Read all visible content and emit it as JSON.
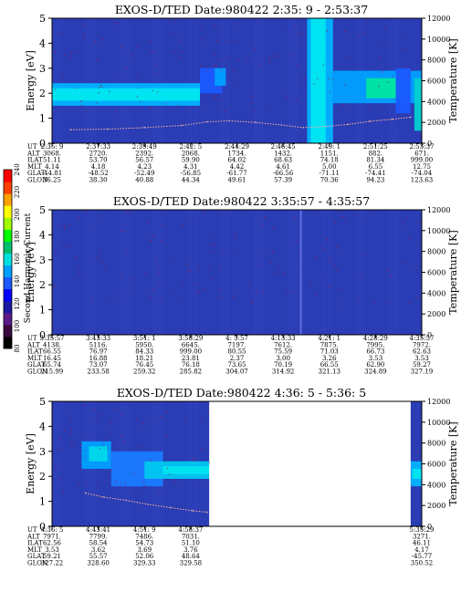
{
  "colorbar": {
    "label": "Second Harmonic Current",
    "ticks": [
      "80",
      "100",
      "120",
      "140",
      "160",
      "180",
      "200",
      "220",
      "240"
    ],
    "colors": [
      "#000000",
      "#3a0a3e",
      "#5a1a8a",
      "#1a1aa0",
      "#0000ff",
      "#1a5aff",
      "#00a0ff",
      "#00e0e0",
      "#00c070",
      "#00ff00",
      "#a0ff00",
      "#ffff00",
      "#ffa000",
      "#ff4000",
      "#ff0000"
    ]
  },
  "chart_data": [
    {
      "type": "heatmap",
      "title": "EXOS-D/TED   Date:980422  2:35: 9 - 2:53:37",
      "ylabel": "Energy [eV]",
      "ylabel_right": "Temperature [K]",
      "ylim": [
        0,
        5
      ],
      "yticks": [
        "0",
        "1",
        "2",
        "3",
        "4",
        "5"
      ],
      "yticks_right": [
        "0",
        "2000",
        "4000",
        "6000",
        "8000",
        "10000",
        "12000"
      ],
      "ylim_right": [
        0,
        12000
      ],
      "background": "#2a3db4",
      "row_labels": [
        "UT",
        "ALT",
        "ILAT",
        "MLT",
        "GLAT",
        "GLON"
      ],
      "columns": [
        [
          "2:35: 9",
          "3068.",
          "51.11",
          "4.14",
          "-44.81",
          "36.25"
        ],
        [
          "2:37:33",
          "2720.",
          "53.70",
          "4.18",
          "-48.52",
          "38.30"
        ],
        [
          "2:39:49",
          "2392.",
          "56.57",
          "4.23",
          "-52.49",
          "40.88"
        ],
        [
          "2:42: 5",
          "2068.",
          "59.90",
          "4.31",
          "-56.85",
          "44.34"
        ],
        [
          "2:44:29",
          "1734.",
          "64.02",
          "4.42",
          "-61.77",
          "49.61"
        ],
        [
          "2:46:45",
          "1432.",
          "68.63",
          "4.61",
          "-66.56",
          "57.39"
        ],
        [
          "2:49: 1",
          "1151.",
          "74.18",
          "5.00",
          "-71.11",
          "70.36"
        ],
        [
          "2:51:25",
          "882.",
          "81.34",
          "6.55",
          "-74.41",
          "94.23"
        ],
        [
          "2:53:37",
          "671.",
          "999.00",
          "12.75",
          "-74.04",
          "123.63"
        ]
      ],
      "bands": [
        {
          "x0": 0.0,
          "x1": 0.4,
          "e0": 1.5,
          "e1": 2.4,
          "color": "#00b4ff"
        },
        {
          "x0": 0.0,
          "x1": 0.4,
          "e0": 1.7,
          "e1": 2.2,
          "color": "#00e6f0"
        },
        {
          "x0": 0.4,
          "x1": 0.46,
          "e0": 2.0,
          "e1": 3.0,
          "color": "#1a5aff"
        },
        {
          "x0": 0.44,
          "x1": 0.47,
          "e0": 2.3,
          "e1": 3.0,
          "color": "#00a0ff"
        },
        {
          "x0": 0.69,
          "x1": 0.76,
          "e0": 0.0,
          "e1": 5.0,
          "color": "#00b4ff"
        },
        {
          "x0": 0.7,
          "x1": 0.74,
          "e0": 0.0,
          "e1": 5.0,
          "color": "#00e6f0"
        },
        {
          "x0": 0.76,
          "x1": 1.0,
          "e0": 1.6,
          "e1": 2.9,
          "color": "#00a0ff"
        },
        {
          "x0": 0.85,
          "x1": 0.93,
          "e0": 1.8,
          "e1": 2.6,
          "color": "#00e6a0"
        },
        {
          "x0": 0.93,
          "x1": 0.97,
          "e0": 1.2,
          "e1": 3.0,
          "color": "#1a5aff"
        },
        {
          "x0": 0.98,
          "x1": 1.0,
          "e0": 0.5,
          "e1": 2.6,
          "color": "#00d0d0"
        }
      ],
      "temperature_curve": [
        [
          0.05,
          1300
        ],
        [
          0.15,
          1350
        ],
        [
          0.25,
          1500
        ],
        [
          0.35,
          1700
        ],
        [
          0.42,
          2050
        ],
        [
          0.48,
          2150
        ],
        [
          0.55,
          2000
        ],
        [
          0.62,
          1750
        ],
        [
          0.68,
          1500
        ],
        [
          0.74,
          1600
        ],
        [
          0.8,
          1800
        ],
        [
          0.86,
          2100
        ],
        [
          0.92,
          2300
        ],
        [
          0.97,
          2500
        ]
      ]
    },
    {
      "type": "heatmap",
      "title": "EXOS-D/TED   Date:980422  3:35:57 - 4:35:57",
      "ylabel": "Energy [eV]",
      "ylabel_right": "Temperature [K]",
      "ylim": [
        0,
        5
      ],
      "yticks": [
        "0",
        "1",
        "2",
        "3",
        "4",
        "5"
      ],
      "yticks_right": [
        "0",
        "2000",
        "4000",
        "6000",
        "8000",
        "10000",
        "12000"
      ],
      "ylim_right": [
        0,
        12000
      ],
      "background": "#2a3db4",
      "row_labels": [
        "UT",
        "ALT",
        "ILAT",
        "MLT",
        "GLAT",
        "GLON"
      ],
      "columns": [
        [
          "3:35:57",
          "4138.",
          "66.55",
          "16.45",
          "65.74",
          "215.99"
        ],
        [
          "3:43:33",
          "5116.",
          "76.97",
          "16.88",
          "73.07",
          "233.58"
        ],
        [
          "3:51: 1",
          "5950.",
          "84.33",
          "18.21",
          "76.45",
          "259.32"
        ],
        [
          "3:58:29",
          "6645.",
          "999.00",
          "23.81",
          "76.18",
          "285.82"
        ],
        [
          "4: 5:57",
          "7197.",
          "80.55",
          "2.37",
          "73.65",
          "304.07"
        ],
        [
          "4:13:33",
          "7612.",
          "75.59",
          "3.00",
          "70.19",
          "314.92"
        ],
        [
          "4:21: 1",
          "7875.",
          "71.03",
          "3.26",
          "66.55",
          "321.13"
        ],
        [
          "4:28:29",
          "7995.",
          "66.73",
          "3.53",
          "62.90",
          "324.89"
        ],
        [
          "4:35:57",
          "7972.",
          "62.63",
          "3.53",
          "59.27",
          "327.19"
        ]
      ],
      "bands": [
        {
          "x0": 0.67,
          "x1": 0.676,
          "e0": 0.0,
          "e1": 5.0,
          "color": "#5a6ae0"
        }
      ]
    },
    {
      "type": "heatmap",
      "title": "EXOS-D/TED   Date:980422  4:36: 5 - 5:36: 5",
      "ylabel": "Energy [eV]",
      "ylabel_right": "Temperature [K]",
      "ylim": [
        0,
        5
      ],
      "yticks": [
        "0",
        "1",
        "2",
        "3",
        "4",
        "5"
      ],
      "yticks_right": [
        "0",
        "2000",
        "4000",
        "6000",
        "8000",
        "10000",
        "12000"
      ],
      "ylim_right": [
        0,
        12000
      ],
      "background": "#2a3db4",
      "row_labels": [
        "UT",
        "ALT",
        "ILAT",
        "MLT",
        "GLAT",
        "GLON"
      ],
      "columns": [
        [
          "4:36: 5",
          "7971.",
          "62.56",
          "3.53",
          "59.21",
          "327.22"
        ],
        [
          "4:43:41",
          "7799.",
          "58.54",
          "3.62",
          "55.57",
          "328.60"
        ],
        [
          "4:51: 9",
          "7486.",
          "54.73",
          "3.69",
          "52.06",
          "329.33"
        ],
        [
          "4:58:37",
          "7031.",
          "51.10",
          "3.76",
          "48.64",
          "329.58"
        ],
        [
          "",
          "",
          "",
          "",
          "",
          ""
        ],
        [
          "",
          "",
          "",
          "",
          "",
          ""
        ],
        [
          "",
          "",
          "",
          "",
          "",
          ""
        ],
        [
          "",
          "",
          "",
          "",
          "",
          ""
        ],
        [
          "5:35:29",
          "3271.",
          "46.11",
          "4.17",
          "-45.77",
          "350.52"
        ]
      ],
      "gap": [
        0.425,
        0.97
      ],
      "bands": [
        {
          "x0": 0.08,
          "x1": 0.16,
          "e0": 2.3,
          "e1": 3.4,
          "color": "#00a0ff"
        },
        {
          "x0": 0.1,
          "x1": 0.15,
          "e0": 2.6,
          "e1": 3.2,
          "color": "#00d8e8"
        },
        {
          "x0": 0.16,
          "x1": 0.3,
          "e0": 1.6,
          "e1": 3.0,
          "color": "#1a7aff"
        },
        {
          "x0": 0.25,
          "x1": 0.425,
          "e0": 1.9,
          "e1": 2.6,
          "color": "#00c8f0"
        },
        {
          "x0": 0.3,
          "x1": 0.425,
          "e0": 2.1,
          "e1": 2.4,
          "color": "#00e6f0"
        },
        {
          "x0": 0.97,
          "x1": 1.0,
          "e0": 1.6,
          "e1": 2.6,
          "color": "#00b4ff"
        },
        {
          "x0": 0.975,
          "x1": 1.0,
          "e0": 1.9,
          "e1": 2.3,
          "color": "#00e6f0"
        }
      ],
      "temperature_curve": [
        [
          0.09,
          3200
        ],
        [
          0.14,
          2800
        ],
        [
          0.2,
          2500
        ],
        [
          0.26,
          2100
        ],
        [
          0.32,
          1800
        ],
        [
          0.38,
          1500
        ],
        [
          0.42,
          1350
        ]
      ]
    }
  ]
}
